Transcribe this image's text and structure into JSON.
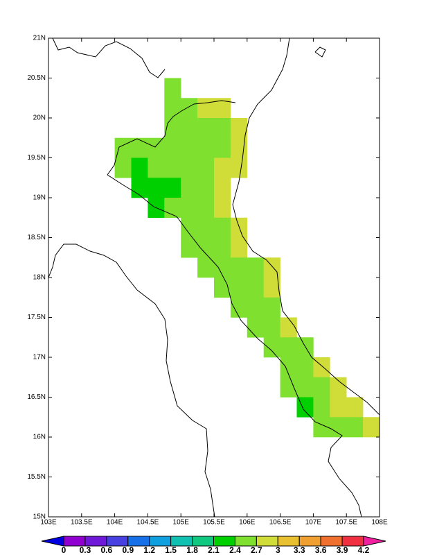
{
  "chart_data": {
    "type": "gridded-map",
    "xlim": [
      103,
      108
    ],
    "ylim": [
      15,
      21
    ],
    "cell_size": 0.25,
    "xticks": [
      {
        "value": 103,
        "label": "103E"
      },
      {
        "value": 103.5,
        "label": "103.5E"
      },
      {
        "value": 104,
        "label": "104E"
      },
      {
        "value": 104.5,
        "label": "104.5E"
      },
      {
        "value": 105,
        "label": "105E"
      },
      {
        "value": 105.5,
        "label": "105.5E"
      },
      {
        "value": 106,
        "label": "106E"
      },
      {
        "value": 106.5,
        "label": "106.5E"
      },
      {
        "value": 107,
        "label": "107E"
      },
      {
        "value": 107.5,
        "label": "107.5E"
      },
      {
        "value": 108,
        "label": "108E"
      }
    ],
    "yticks": [
      {
        "value": 15,
        "label": "15N"
      },
      {
        "value": 15.5,
        "label": "15.5N"
      },
      {
        "value": 16,
        "label": "16N"
      },
      {
        "value": 16.5,
        "label": "16.5N"
      },
      {
        "value": 17,
        "label": "17N"
      },
      {
        "value": 17.5,
        "label": "17.5N"
      },
      {
        "value": 18,
        "label": "18N"
      },
      {
        "value": 18.5,
        "label": "18.5N"
      },
      {
        "value": 19,
        "label": "19N"
      },
      {
        "value": 19.5,
        "label": "19.5N"
      },
      {
        "value": 20,
        "label": "20N"
      },
      {
        "value": 20.5,
        "label": "20.5N"
      },
      {
        "value": 21,
        "label": "21N"
      }
    ],
    "levels": [
      0,
      0.3,
      0.6,
      0.9,
      1.2,
      1.5,
      1.8,
      2.1,
      2.4,
      2.7,
      3,
      3.3,
      3.6,
      3.9,
      4.2
    ],
    "colors": [
      "#0000e0",
      "#9000d0",
      "#7018d8",
      "#4840e0",
      "#1870e8",
      "#10a0e0",
      "#10c0b0",
      "#10c880",
      "#00d000",
      "#80e030",
      "#d0dc38",
      "#e8c030",
      "#f0a030",
      "#f07030",
      "#f03040",
      "#f020a0"
    ],
    "cells": [
      {
        "lon": 104.75,
        "lat": 20.25,
        "value": 2.55
      },
      {
        "lon": 104.75,
        "lat": 20,
        "value": 2.55
      },
      {
        "lon": 105,
        "lat": 20,
        "value": 2.55
      },
      {
        "lon": 105.25,
        "lat": 20,
        "value": 2.85
      },
      {
        "lon": 105.5,
        "lat": 20,
        "value": 2.85
      },
      {
        "lon": 104.75,
        "lat": 19.75,
        "value": 2.55
      },
      {
        "lon": 105,
        "lat": 19.75,
        "value": 2.55
      },
      {
        "lon": 105.25,
        "lat": 19.75,
        "value": 2.55
      },
      {
        "lon": 105.5,
        "lat": 19.75,
        "value": 2.55
      },
      {
        "lon": 105.75,
        "lat": 19.75,
        "value": 2.85
      },
      {
        "lon": 104,
        "lat": 19.5,
        "value": 2.55
      },
      {
        "lon": 104.25,
        "lat": 19.5,
        "value": 2.55
      },
      {
        "lon": 104.5,
        "lat": 19.5,
        "value": 2.55
      },
      {
        "lon": 104.75,
        "lat": 19.5,
        "value": 2.55
      },
      {
        "lon": 105,
        "lat": 19.5,
        "value": 2.55
      },
      {
        "lon": 105.25,
        "lat": 19.5,
        "value": 2.55
      },
      {
        "lon": 105.5,
        "lat": 19.5,
        "value": 2.55
      },
      {
        "lon": 105.75,
        "lat": 19.5,
        "value": 2.85
      },
      {
        "lon": 104,
        "lat": 19.25,
        "value": 2.55
      },
      {
        "lon": 104.25,
        "lat": 19.25,
        "value": 2.25
      },
      {
        "lon": 104.5,
        "lat": 19.25,
        "value": 2.55
      },
      {
        "lon": 104.75,
        "lat": 19.25,
        "value": 2.55
      },
      {
        "lon": 105,
        "lat": 19.25,
        "value": 2.55
      },
      {
        "lon": 105.25,
        "lat": 19.25,
        "value": 2.55
      },
      {
        "lon": 105.5,
        "lat": 19.25,
        "value": 2.85
      },
      {
        "lon": 105.75,
        "lat": 19.25,
        "value": 2.85
      },
      {
        "lon": 104.25,
        "lat": 19,
        "value": 2.25
      },
      {
        "lon": 104.5,
        "lat": 19,
        "value": 2.25
      },
      {
        "lon": 104.75,
        "lat": 19,
        "value": 2.25
      },
      {
        "lon": 105,
        "lat": 19,
        "value": 2.55
      },
      {
        "lon": 105.25,
        "lat": 19,
        "value": 2.55
      },
      {
        "lon": 105.5,
        "lat": 19,
        "value": 2.85
      },
      {
        "lon": 104.5,
        "lat": 18.75,
        "value": 2.25
      },
      {
        "lon": 104.75,
        "lat": 18.75,
        "value": 2.55
      },
      {
        "lon": 105,
        "lat": 18.75,
        "value": 2.55
      },
      {
        "lon": 105.25,
        "lat": 18.75,
        "value": 2.55
      },
      {
        "lon": 105.5,
        "lat": 18.75,
        "value": 2.85
      },
      {
        "lon": 105,
        "lat": 18.5,
        "value": 2.55
      },
      {
        "lon": 105.25,
        "lat": 18.5,
        "value": 2.55
      },
      {
        "lon": 105.5,
        "lat": 18.5,
        "value": 2.55
      },
      {
        "lon": 105.75,
        "lat": 18.5,
        "value": 2.85
      },
      {
        "lon": 105,
        "lat": 18.25,
        "value": 2.55
      },
      {
        "lon": 105.25,
        "lat": 18.25,
        "value": 2.55
      },
      {
        "lon": 105.5,
        "lat": 18.25,
        "value": 2.55
      },
      {
        "lon": 105.75,
        "lat": 18.25,
        "value": 2.85
      },
      {
        "lon": 105.25,
        "lat": 18,
        "value": 2.55
      },
      {
        "lon": 105.5,
        "lat": 18,
        "value": 2.55
      },
      {
        "lon": 105.75,
        "lat": 18,
        "value": 2.55
      },
      {
        "lon": 106,
        "lat": 18,
        "value": 2.55
      },
      {
        "lon": 106.25,
        "lat": 18,
        "value": 2.85
      },
      {
        "lon": 105.5,
        "lat": 17.75,
        "value": 2.55
      },
      {
        "lon": 105.75,
        "lat": 17.75,
        "value": 2.55
      },
      {
        "lon": 106,
        "lat": 17.75,
        "value": 2.55
      },
      {
        "lon": 106.25,
        "lat": 17.75,
        "value": 2.85
      },
      {
        "lon": 105.75,
        "lat": 17.5,
        "value": 2.55
      },
      {
        "lon": 106,
        "lat": 17.5,
        "value": 2.55
      },
      {
        "lon": 106.25,
        "lat": 17.5,
        "value": 2.55
      },
      {
        "lon": 106,
        "lat": 17.25,
        "value": 2.55
      },
      {
        "lon": 106.25,
        "lat": 17.25,
        "value": 2.55
      },
      {
        "lon": 106.5,
        "lat": 17.25,
        "value": 2.85
      },
      {
        "lon": 106.25,
        "lat": 17,
        "value": 2.55
      },
      {
        "lon": 106.5,
        "lat": 17,
        "value": 2.55
      },
      {
        "lon": 106.75,
        "lat": 17,
        "value": 2.55
      },
      {
        "lon": 106.5,
        "lat": 16.75,
        "value": 2.55
      },
      {
        "lon": 106.75,
        "lat": 16.75,
        "value": 2.55
      },
      {
        "lon": 107,
        "lat": 16.75,
        "value": 2.85
      },
      {
        "lon": 106.5,
        "lat": 16.5,
        "value": 2.55
      },
      {
        "lon": 106.75,
        "lat": 16.5,
        "value": 2.55
      },
      {
        "lon": 107,
        "lat": 16.5,
        "value": 2.55
      },
      {
        "lon": 107.25,
        "lat": 16.5,
        "value": 2.85
      },
      {
        "lon": 106.75,
        "lat": 16.25,
        "value": 2.25
      },
      {
        "lon": 107,
        "lat": 16.25,
        "value": 2.55
      },
      {
        "lon": 107.25,
        "lat": 16.25,
        "value": 2.85
      },
      {
        "lon": 107.5,
        "lat": 16.25,
        "value": 2.85
      },
      {
        "lon": 107,
        "lat": 16,
        "value": 2.55
      },
      {
        "lon": 107.25,
        "lat": 16,
        "value": 2.55
      },
      {
        "lon": 107.5,
        "lat": 16,
        "value": 2.55
      },
      {
        "lon": 107.75,
        "lat": 16,
        "value": 2.85
      }
    ]
  }
}
